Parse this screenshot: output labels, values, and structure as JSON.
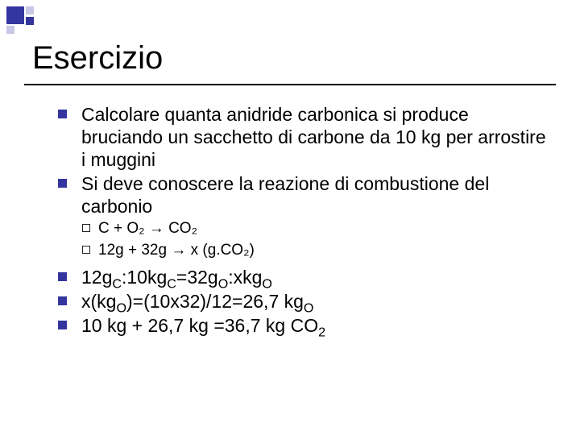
{
  "title": "Esercizio",
  "bullets_top": [
    "Calcolare quanta anidride carbonica si produce bruciando un sacchetto di carbone da 10 kg per arrostire i muggini",
    "Si deve conoscere la reazione di combustione del carbonio"
  ],
  "sub_bullets": [
    "C + O₂ → CO₂",
    "12g + 32g → x (g.CO₂)"
  ],
  "bullets_bottom_html": [
    "12g<sub>C</sub>:10kg<sub>C</sub>=32g<sub>O</sub>:xkg<sub>O</sub>",
    "x(kg<sub>O</sub>)=(10x32)/12=26,7 kg<sub>O</sub>",
    "10 kg + 26,7 kg =36,7 kg CO<sub>2</sub>"
  ],
  "colors": {
    "accent": "#35359f",
    "text": "#000000",
    "background": "#ffffff"
  },
  "fonts": {
    "title_size": 40,
    "main_size": 23,
    "sub_size": 19
  }
}
